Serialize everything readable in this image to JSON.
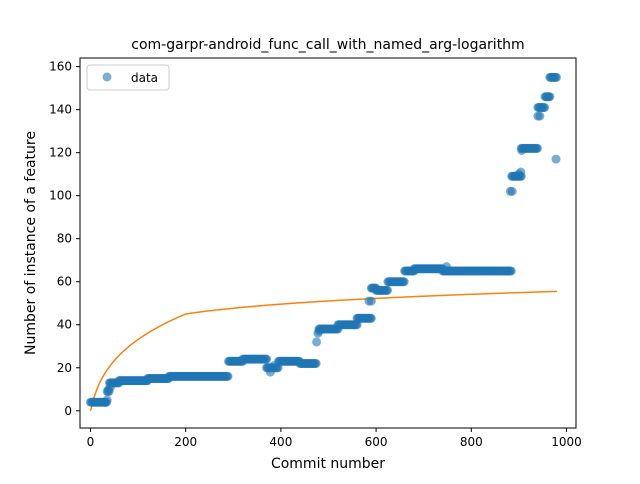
{
  "chart_data": {
    "type": "scatter",
    "title": "com-garpr-android_func_call_with_named_arg-logarithm",
    "xlabel": "Commit number",
    "ylabel": "Number of instance of a feature",
    "xlim": [
      -22,
      1020
    ],
    "ylim": [
      -8,
      164
    ],
    "x_ticks": [
      0,
      200,
      400,
      600,
      800,
      1000
    ],
    "y_ticks": [
      0,
      20,
      40,
      60,
      80,
      100,
      120,
      140,
      160
    ],
    "grid": false,
    "legend": {
      "placement": "top-left",
      "entries": [
        {
          "label": "data",
          "color": "#1f77b4"
        }
      ]
    },
    "colors": {
      "data": "#1f77b4",
      "fit": "#ff7f0e"
    },
    "series": [
      {
        "name": "data",
        "kind": "scatter",
        "segments": [
          {
            "x0": 0,
            "x1": 35,
            "y": 4
          },
          {
            "x0": 35,
            "x1": 40,
            "y": 9
          },
          {
            "x0": 40,
            "x1": 60,
            "y": 13
          },
          {
            "x0": 60,
            "x1": 120,
            "y": 14
          },
          {
            "x0": 120,
            "x1": 165,
            "y": 15
          },
          {
            "x0": 165,
            "x1": 290,
            "y": 16
          },
          {
            "x0": 290,
            "x1": 320,
            "y": 23
          },
          {
            "x0": 320,
            "x1": 370,
            "y": 24
          },
          {
            "x0": 370,
            "x1": 395,
            "y": 20
          },
          {
            "x0": 395,
            "x1": 440,
            "y": 23
          },
          {
            "x0": 440,
            "x1": 475,
            "y": 22
          },
          {
            "x0": 480,
            "x1": 490,
            "y": 38
          },
          {
            "x0": 490,
            "x1": 520,
            "y": 38
          },
          {
            "x0": 520,
            "x1": 560,
            "y": 40
          },
          {
            "x0": 560,
            "x1": 590,
            "y": 43
          },
          {
            "x0": 590,
            "x1": 600,
            "y": 57
          },
          {
            "x0": 600,
            "x1": 625,
            "y": 56
          },
          {
            "x0": 625,
            "x1": 660,
            "y": 60
          },
          {
            "x0": 660,
            "x1": 680,
            "y": 65
          },
          {
            "x0": 680,
            "x1": 740,
            "y": 66
          },
          {
            "x0": 740,
            "x1": 885,
            "y": 65
          },
          {
            "x0": 885,
            "x1": 905,
            "y": 109
          },
          {
            "x0": 905,
            "x1": 940,
            "y": 122
          },
          {
            "x0": 940,
            "x1": 955,
            "y": 141
          },
          {
            "x0": 955,
            "x1": 965,
            "y": 146
          },
          {
            "x0": 965,
            "x1": 980,
            "y": 155
          }
        ],
        "points": [
          {
            "x": 30,
            "y": 4
          },
          {
            "x": 35,
            "y": 5
          },
          {
            "x": 38,
            "y": 10
          },
          {
            "x": 42,
            "y": 11
          },
          {
            "x": 378,
            "y": 18
          },
          {
            "x": 385,
            "y": 21
          },
          {
            "x": 475,
            "y": 32
          },
          {
            "x": 478,
            "y": 36
          },
          {
            "x": 480,
            "y": 37
          },
          {
            "x": 585,
            "y": 51
          },
          {
            "x": 590,
            "y": 51
          },
          {
            "x": 748,
            "y": 67
          },
          {
            "x": 882,
            "y": 102
          },
          {
            "x": 886,
            "y": 102
          },
          {
            "x": 900,
            "y": 110
          },
          {
            "x": 904,
            "y": 111
          },
          {
            "x": 906,
            "y": 121
          },
          {
            "x": 940,
            "y": 137
          },
          {
            "x": 944,
            "y": 137
          },
          {
            "x": 978,
            "y": 117
          }
        ]
      },
      {
        "name": "",
        "kind": "line",
        "model": "logarithm",
        "x_range": [
          0,
          980
        ],
        "anchors": [
          {
            "x": 0,
            "y": 0
          },
          {
            "x": 200,
            "y": 45
          },
          {
            "x": 600,
            "y": 51
          },
          {
            "x": 980,
            "y": 55.5
          }
        ]
      }
    ]
  }
}
